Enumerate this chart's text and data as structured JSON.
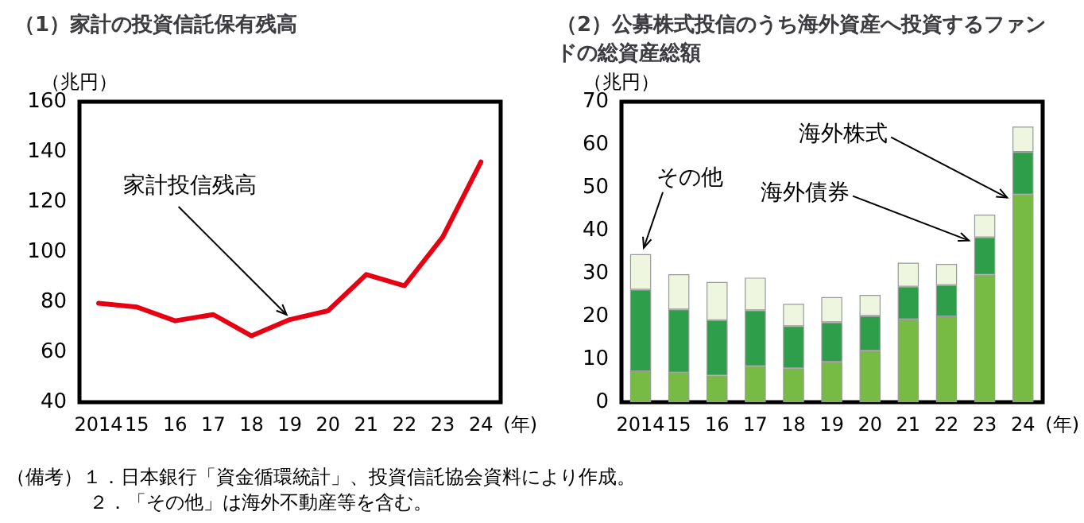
{
  "chart_data": [
    {
      "type": "line",
      "title": "（1）家計の投資信託保有残高",
      "ylabel": "（兆円）",
      "xlabel": "(年)",
      "categories": [
        "2014",
        "15",
        "16",
        "17",
        "18",
        "19",
        "20",
        "21",
        "22",
        "23",
        "24"
      ],
      "series": [
        {
          "color": "#e60012",
          "values": [
            79.5,
            78,
            72.5,
            75,
            66.5,
            73,
            76.5,
            91,
            86.5,
            106,
            136
          ]
        }
      ],
      "ylim": [
        40,
        160
      ],
      "yticks": [
        40,
        60,
        80,
        100,
        120,
        140,
        160
      ],
      "annotations": [
        {
          "text": "家計投信残高",
          "x": "19",
          "y": 73
        }
      ],
      "grid": false,
      "legend": false,
      "marker": "none",
      "line_style": "solid"
    },
    {
      "type": "bar",
      "stacked": true,
      "title": "（2）公募株式投信のうち海外資産へ投資するファンドの総資産総額",
      "ylabel": "（兆円）",
      "xlabel": "(年)",
      "categories": [
        "2014",
        "15",
        "16",
        "17",
        "18",
        "19",
        "20",
        "21",
        "22",
        "23",
        "24"
      ],
      "series": [
        {
          "name": "海外株式",
          "color": "#77bb44",
          "values": [
            7.2,
            6.9,
            6.2,
            8.4,
            7.9,
            9.4,
            12.0,
            19.3,
            20.0,
            29.7,
            48.4
          ]
        },
        {
          "name": "海外債券",
          "color": "#2e9e4a",
          "values": [
            19.0,
            14.7,
            12.9,
            13.0,
            9.8,
            9.2,
            8.1,
            7.6,
            7.3,
            8.7,
            9.9
          ]
        },
        {
          "name": "その他",
          "color": "#eef6e0",
          "values": [
            8.3,
            8.2,
            8.9,
            7.6,
            5.2,
            5.9,
            4.9,
            5.6,
            4.9,
            5.3,
            5.9
          ]
        }
      ],
      "ylim": [
        0,
        70
      ],
      "yticks": [
        0,
        10,
        20,
        30,
        40,
        50,
        60,
        70
      ],
      "annotations": [
        "（備考）１．日本銀行「資金循環統計」、投資信託協会資料により作成。",
        "２．「その他」は海外不動産等を含む。"
      ],
      "grid": false,
      "legend": false
    }
  ]
}
